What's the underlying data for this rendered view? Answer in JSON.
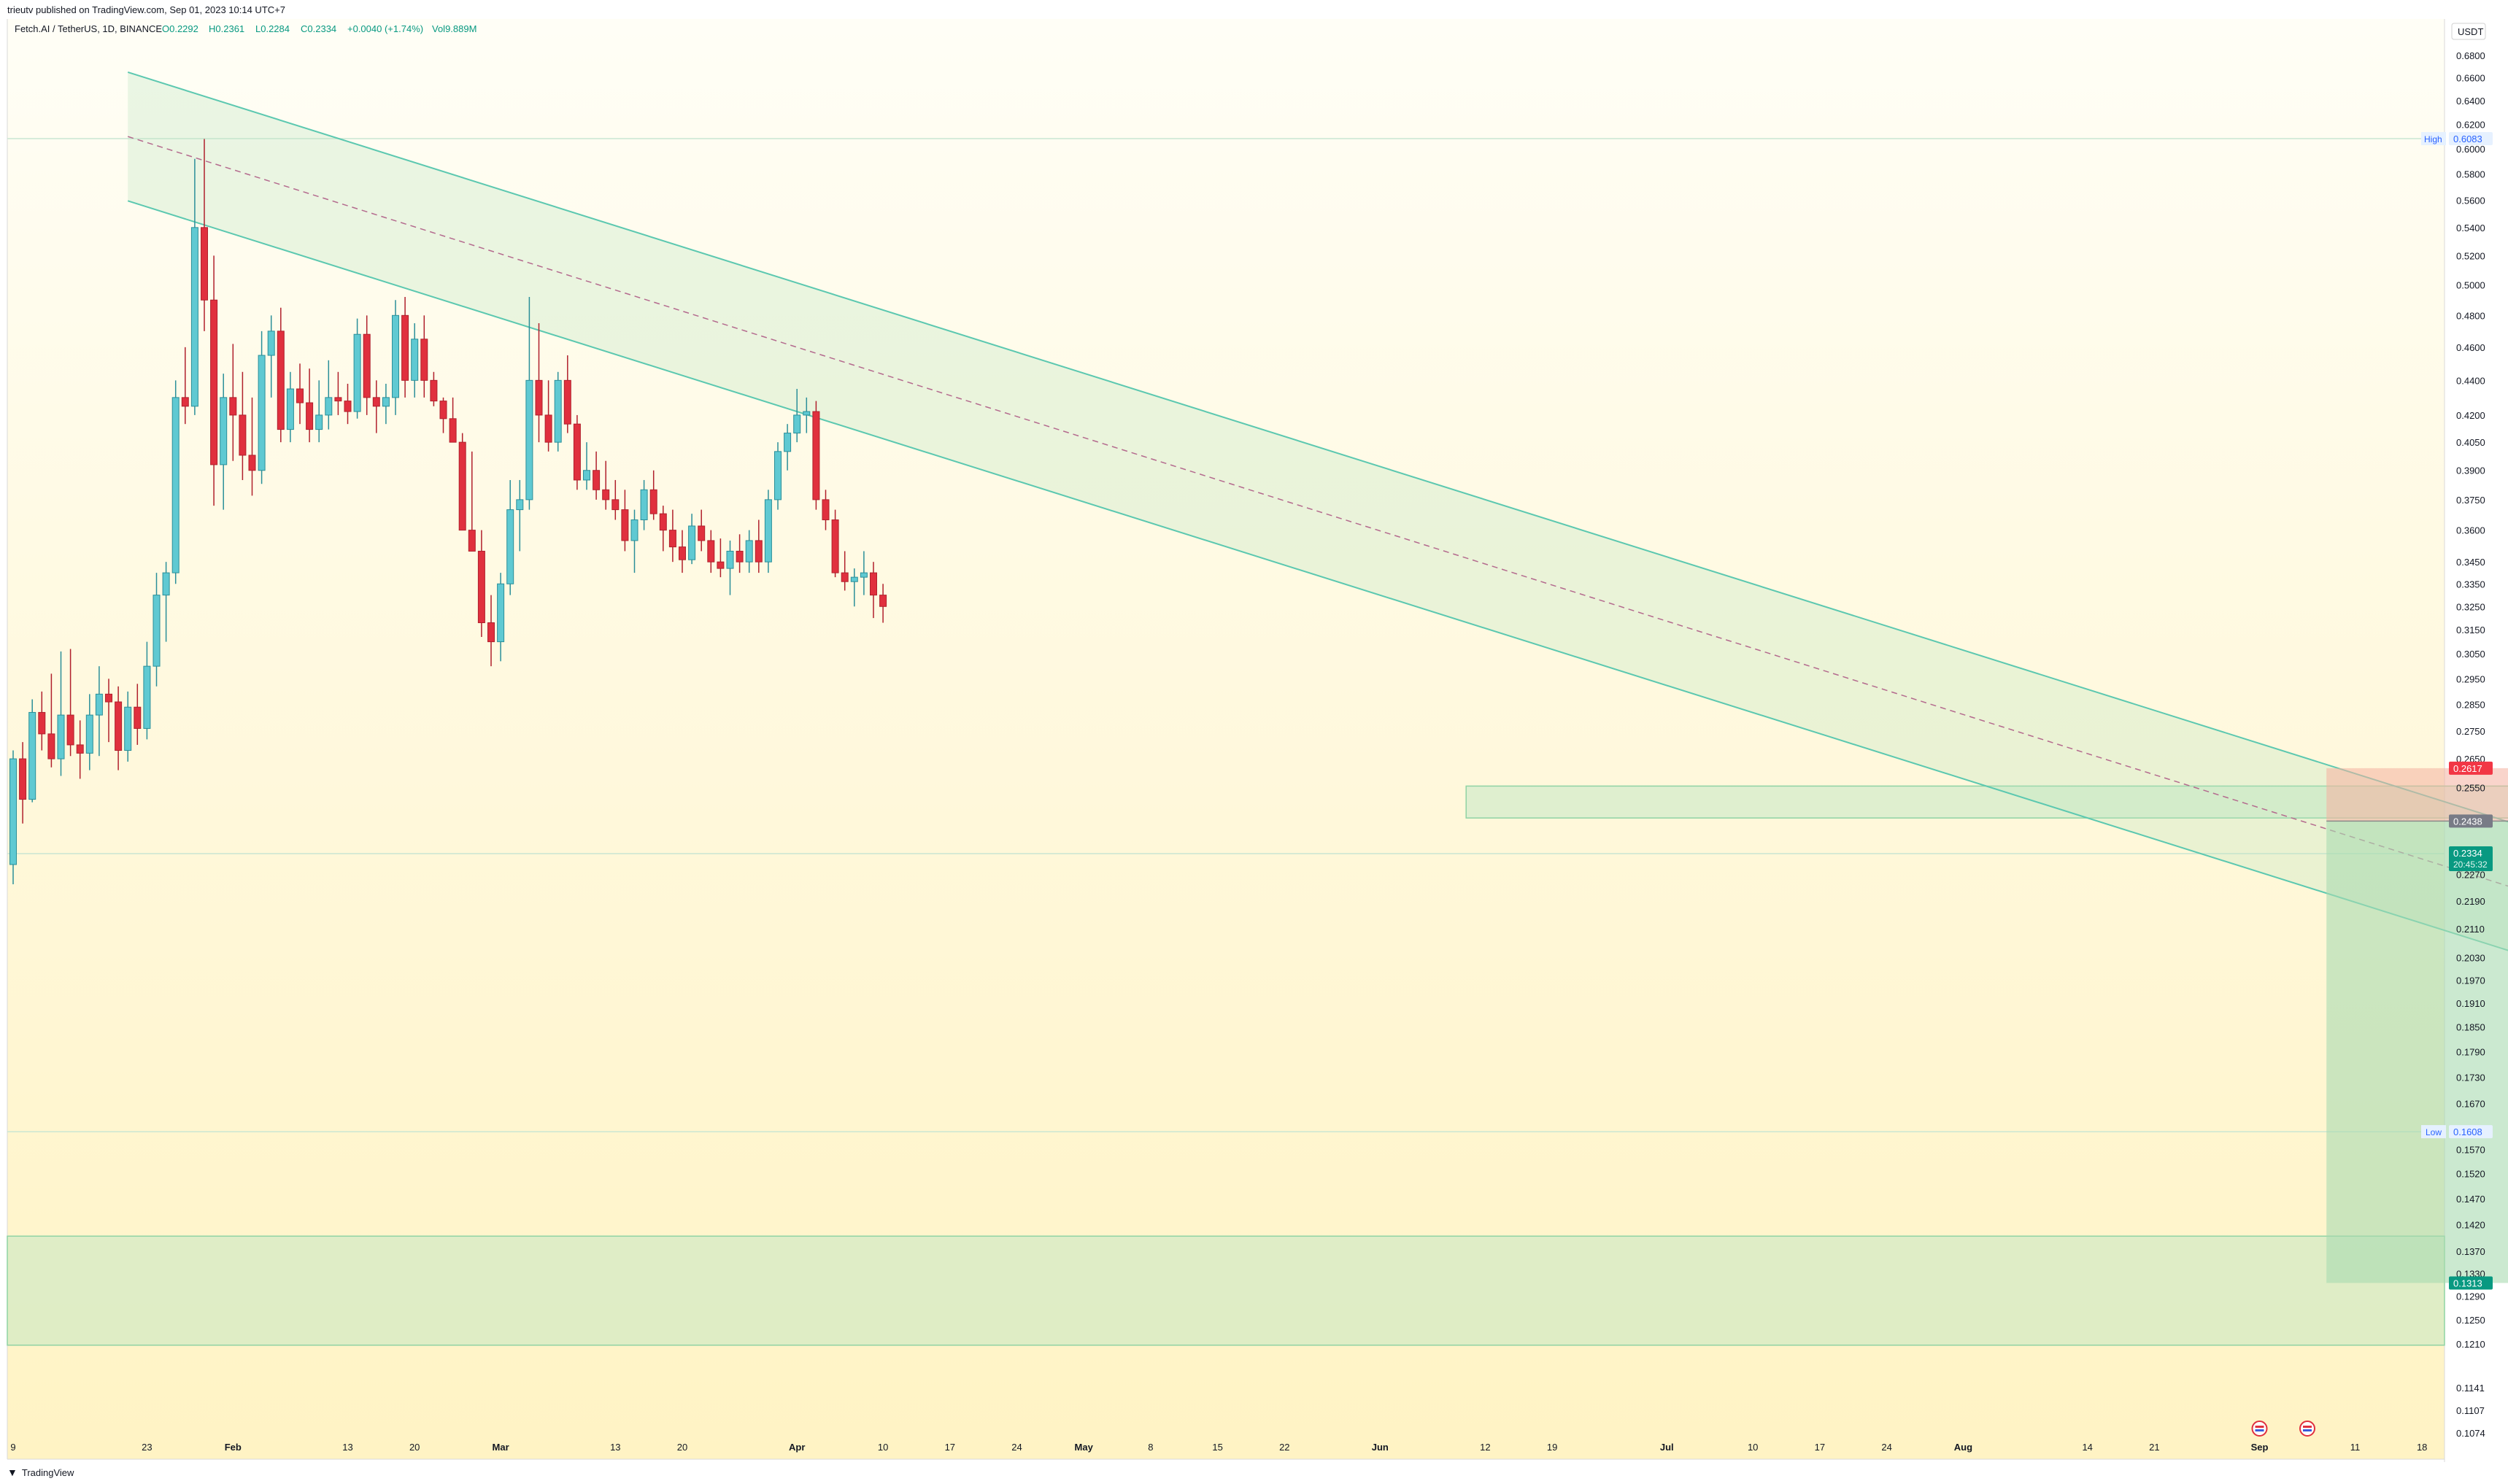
{
  "header": {
    "published": "trieutv published on TradingView.com, Sep 01, 2023 10:14 UTC+7"
  },
  "legend": {
    "symbol": "Fetch.AI / TetherUS, 1D, BINANCE",
    "open": "O0.2292",
    "high": "H0.2361",
    "low": "L0.2284",
    "close": "C0.2334",
    "change": "+0.0040 (+1.74%)",
    "volume": "Vol9.889M"
  },
  "footer": {
    "brand": "TradingView"
  },
  "colors": {
    "up": "#5fc9d2",
    "down": "#e0303e",
    "channel": "#5cc8b0",
    "zone": "#b8e4c0",
    "stop": "#f4b0a0",
    "target": "#a8dab0",
    "bg_top": "#fffef6",
    "bg_bottom": "#fff3c4"
  },
  "chart_data": {
    "type": "candlestick",
    "y_scale": "log",
    "quote_currency": "USDT",
    "ylim": [
      0.1074,
      0.68
    ],
    "y_ticks": [
      "0.6800",
      "0.6600",
      "0.6400",
      "0.6200",
      "0.6000",
      "0.5800",
      "0.5600",
      "0.5400",
      "0.5200",
      "0.5000",
      "0.4800",
      "0.4600",
      "0.4400",
      "0.4200",
      "0.4050",
      "0.3900",
      "0.3750",
      "0.3600",
      "0.3450",
      "0.3350",
      "0.3250",
      "0.3150",
      "0.3050",
      "0.2950",
      "0.2850",
      "0.2750",
      "0.2650",
      "0.2550",
      "0.2270",
      "0.2190",
      "0.2110",
      "0.2030",
      "0.1970",
      "0.1910",
      "0.1850",
      "0.1790",
      "0.1730",
      "0.1670",
      "0.1570",
      "0.1520",
      "0.1470",
      "0.1420",
      "0.1370",
      "0.1330",
      "0.1290",
      "0.1250",
      "0.1210",
      "0.1141",
      "0.1107",
      "0.1074"
    ],
    "x_ticks": [
      {
        "label": "9",
        "day": 0
      },
      {
        "label": "23",
        "day": 14
      },
      {
        "label": "Feb",
        "day": 23
      },
      {
        "label": "13",
        "day": 35
      },
      {
        "label": "20",
        "day": 42
      },
      {
        "label": "Mar",
        "day": 51
      },
      {
        "label": "13",
        "day": 63
      },
      {
        "label": "20",
        "day": 70
      },
      {
        "label": "Apr",
        "day": 82
      },
      {
        "label": "10",
        "day": 91
      },
      {
        "label": "17",
        "day": 98
      },
      {
        "label": "24",
        "day": 105
      },
      {
        "label": "May",
        "day": 112
      },
      {
        "label": "8",
        "day": 119
      },
      {
        "label": "15",
        "day": 126
      },
      {
        "label": "22",
        "day": 133
      },
      {
        "label": "Jun",
        "day": 143
      },
      {
        "label": "12",
        "day": 154
      },
      {
        "label": "19",
        "day": 161
      },
      {
        "label": "Jul",
        "day": 173
      },
      {
        "label": "10",
        "day": 182
      },
      {
        "label": "17",
        "day": 189
      },
      {
        "label": "24",
        "day": 196
      },
      {
        "label": "Aug",
        "day": 204
      },
      {
        "label": "14",
        "day": 217
      },
      {
        "label": "21",
        "day": 224
      },
      {
        "label": "Sep",
        "day": 235
      },
      {
        "label": "11",
        "day": 245
      },
      {
        "label": "18",
        "day": 252
      }
    ],
    "candles": [
      [
        0.23,
        0.268,
        0.224,
        0.265
      ],
      [
        0.265,
        0.271,
        0.243,
        0.251
      ],
      [
        0.251,
        0.287,
        0.25,
        0.282
      ],
      [
        0.282,
        0.29,
        0.268,
        0.274
      ],
      [
        0.274,
        0.297,
        0.262,
        0.265
      ],
      [
        0.265,
        0.306,
        0.259,
        0.281
      ],
      [
        0.281,
        0.307,
        0.266,
        0.27
      ],
      [
        0.27,
        0.279,
        0.258,
        0.267
      ],
      [
        0.267,
        0.289,
        0.261,
        0.281
      ],
      [
        0.281,
        0.3,
        0.266,
        0.289
      ],
      [
        0.289,
        0.295,
        0.271,
        0.286
      ],
      [
        0.286,
        0.292,
        0.261,
        0.268
      ],
      [
        0.268,
        0.29,
        0.264,
        0.284
      ],
      [
        0.284,
        0.293,
        0.27,
        0.276
      ],
      [
        0.276,
        0.31,
        0.272,
        0.3
      ],
      [
        0.3,
        0.34,
        0.292,
        0.33
      ],
      [
        0.33,
        0.345,
        0.31,
        0.34
      ],
      [
        0.34,
        0.44,
        0.335,
        0.43
      ],
      [
        0.43,
        0.46,
        0.415,
        0.425
      ],
      [
        0.425,
        0.592,
        0.42,
        0.54
      ],
      [
        0.54,
        0.608,
        0.47,
        0.49
      ],
      [
        0.49,
        0.52,
        0.372,
        0.393
      ],
      [
        0.393,
        0.444,
        0.37,
        0.43
      ],
      [
        0.43,
        0.462,
        0.395,
        0.42
      ],
      [
        0.42,
        0.445,
        0.385,
        0.398
      ],
      [
        0.398,
        0.43,
        0.377,
        0.39
      ],
      [
        0.39,
        0.47,
        0.383,
        0.455
      ],
      [
        0.455,
        0.48,
        0.43,
        0.47
      ],
      [
        0.47,
        0.485,
        0.405,
        0.412
      ],
      [
        0.412,
        0.445,
        0.405,
        0.435
      ],
      [
        0.435,
        0.45,
        0.415,
        0.427
      ],
      [
        0.427,
        0.447,
        0.405,
        0.412
      ],
      [
        0.412,
        0.44,
        0.405,
        0.42
      ],
      [
        0.42,
        0.452,
        0.412,
        0.43
      ],
      [
        0.43,
        0.445,
        0.42,
        0.428
      ],
      [
        0.428,
        0.438,
        0.415,
        0.422
      ],
      [
        0.422,
        0.478,
        0.418,
        0.468
      ],
      [
        0.468,
        0.48,
        0.42,
        0.43
      ],
      [
        0.43,
        0.44,
        0.41,
        0.425
      ],
      [
        0.425,
        0.438,
        0.415,
        0.43
      ],
      [
        0.43,
        0.49,
        0.42,
        0.48
      ],
      [
        0.48,
        0.492,
        0.43,
        0.44
      ],
      [
        0.44,
        0.475,
        0.43,
        0.465
      ],
      [
        0.465,
        0.48,
        0.43,
        0.44
      ],
      [
        0.44,
        0.445,
        0.425,
        0.428
      ],
      [
        0.428,
        0.43,
        0.41,
        0.418
      ],
      [
        0.418,
        0.43,
        0.405,
        0.405
      ],
      [
        0.405,
        0.41,
        0.36,
        0.36
      ],
      [
        0.36,
        0.4,
        0.35,
        0.35
      ],
      [
        0.35,
        0.36,
        0.312,
        0.318
      ],
      [
        0.318,
        0.33,
        0.3,
        0.31
      ],
      [
        0.31,
        0.34,
        0.302,
        0.335
      ],
      [
        0.335,
        0.385,
        0.33,
        0.37
      ],
      [
        0.37,
        0.385,
        0.35,
        0.375
      ],
      [
        0.375,
        0.492,
        0.37,
        0.44
      ],
      [
        0.44,
        0.475,
        0.405,
        0.42
      ],
      [
        0.42,
        0.44,
        0.4,
        0.405
      ],
      [
        0.405,
        0.445,
        0.4,
        0.44
      ],
      [
        0.44,
        0.455,
        0.41,
        0.415
      ],
      [
        0.415,
        0.42,
        0.38,
        0.385
      ],
      [
        0.385,
        0.405,
        0.38,
        0.39
      ],
      [
        0.39,
        0.4,
        0.375,
        0.38
      ],
      [
        0.38,
        0.395,
        0.37,
        0.375
      ],
      [
        0.375,
        0.385,
        0.365,
        0.37
      ],
      [
        0.37,
        0.38,
        0.35,
        0.355
      ],
      [
        0.355,
        0.37,
        0.34,
        0.365
      ],
      [
        0.365,
        0.385,
        0.36,
        0.38
      ],
      [
        0.38,
        0.39,
        0.365,
        0.368
      ],
      [
        0.368,
        0.372,
        0.35,
        0.36
      ],
      [
        0.36,
        0.37,
        0.345,
        0.352
      ],
      [
        0.352,
        0.36,
        0.34,
        0.346
      ],
      [
        0.346,
        0.368,
        0.344,
        0.362
      ],
      [
        0.362,
        0.37,
        0.35,
        0.355
      ],
      [
        0.355,
        0.36,
        0.34,
        0.345
      ],
      [
        0.345,
        0.356,
        0.338,
        0.342
      ],
      [
        0.342,
        0.355,
        0.33,
        0.35
      ],
      [
        0.35,
        0.358,
        0.34,
        0.345
      ],
      [
        0.345,
        0.36,
        0.34,
        0.355
      ],
      [
        0.355,
        0.365,
        0.34,
        0.345
      ],
      [
        0.345,
        0.38,
        0.34,
        0.375
      ],
      [
        0.375,
        0.405,
        0.37,
        0.4
      ],
      [
        0.4,
        0.415,
        0.39,
        0.41
      ],
      [
        0.41,
        0.435,
        0.405,
        0.42
      ],
      [
        0.42,
        0.43,
        0.41,
        0.422
      ],
      [
        0.422,
        0.428,
        0.37,
        0.375
      ],
      [
        0.375,
        0.38,
        0.36,
        0.365
      ],
      [
        0.365,
        0.37,
        0.338,
        0.34
      ],
      [
        0.34,
        0.35,
        0.332,
        0.336
      ],
      [
        0.336,
        0.342,
        0.325,
        0.338
      ],
      [
        0.338,
        0.35,
        0.33,
        0.34
      ],
      [
        0.34,
        0.345,
        0.32,
        0.33
      ],
      [
        0.33,
        0.335,
        0.318,
        0.325
      ]
    ],
    "channel": {
      "p1": {
        "day": 12,
        "price": 0.61
      },
      "p2": {
        "day": 266,
        "price": 0.219
      },
      "width_ratio": 1.09
    },
    "horizontal_lines": [
      0.6083,
      0.2334,
      0.1608
    ],
    "labels": {
      "high_label": "High",
      "high_value": "0.6083",
      "low_label": "Low",
      "low_value": "0.1608",
      "usdt": "USDT"
    },
    "price_tags": {
      "stop": "0.2617",
      "entry": "0.2438",
      "last": "0.2334",
      "countdown": "20:45:32",
      "target": "0.1313"
    },
    "zones": {
      "resistance": {
        "day0": 152,
        "day1": 266,
        "lo": 0.2448,
        "hi": 0.2555
      },
      "support": {
        "day0": 0,
        "day1": 266,
        "lo": 0.1208,
        "hi": 0.1398
      }
    },
    "position": {
      "day0": 242,
      "day1": 266,
      "stop": 0.2617,
      "entry": 0.2438,
      "target": 0.1313
    },
    "markers_days": [
      235,
      240
    ]
  }
}
